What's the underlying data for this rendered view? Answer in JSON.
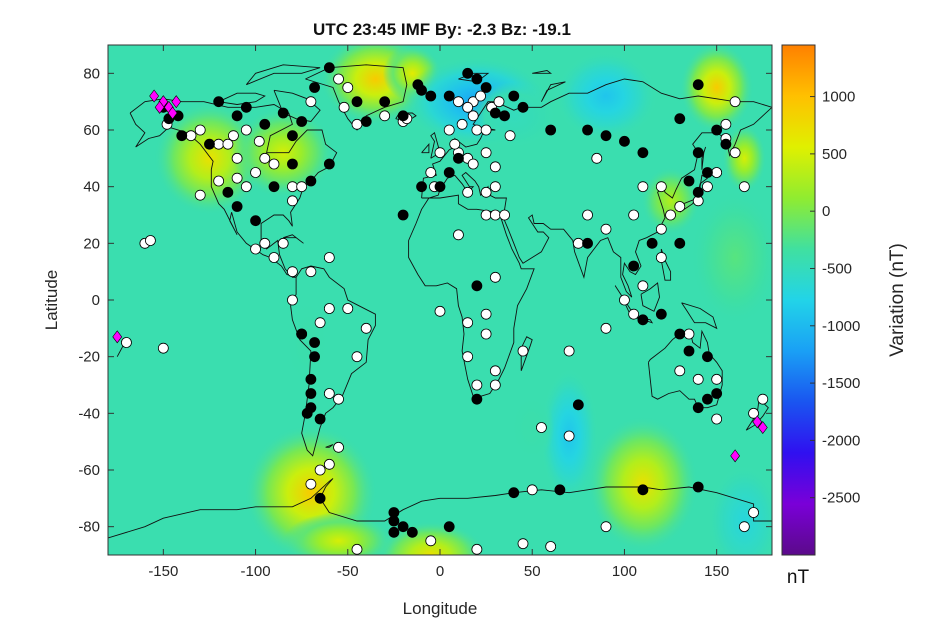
{
  "title": "UTC 23:45 IMF By: -2.3 Bz: -19.1",
  "xlabel": "Longitude",
  "ylabel": "Latitude",
  "colorbar": {
    "label": "Variation (nT)",
    "unit": "nT",
    "ticks": [
      1000,
      500,
      0,
      -500,
      -1000,
      -1500,
      -2000,
      -2500
    ],
    "range": [
      -3000,
      1450
    ],
    "colormap": [
      "#5b0a8a",
      "#7a00d8",
      "#3010f0",
      "#1a55f0",
      "#1aa0f5",
      "#22d4e8",
      "#40e0a0",
      "#90ec30",
      "#e0f000",
      "#ffc000",
      "#ff8000"
    ]
  },
  "map": {
    "xlim": [
      -180,
      180
    ],
    "ylim": [
      -90,
      90
    ],
    "xticks": [
      -150,
      -100,
      -50,
      0,
      50,
      100,
      150
    ],
    "yticks": [
      80,
      60,
      40,
      20,
      0,
      -20,
      -40,
      -60,
      -80
    ],
    "background_value": -420,
    "anomalies": [
      {
        "lon": -125,
        "lat": 50,
        "sx": 15,
        "sy": 10,
        "v": 700
      },
      {
        "lon": -85,
        "lat": 52,
        "sx": 14,
        "sy": 8,
        "v": 500
      },
      {
        "lon": -35,
        "lat": 78,
        "sx": 15,
        "sy": 8,
        "v": 900
      },
      {
        "lon": -15,
        "lat": 80,
        "sx": 8,
        "sy": 5,
        "v": 600
      },
      {
        "lon": 20,
        "lat": 70,
        "sx": 20,
        "sy": 8,
        "v": -1200
      },
      {
        "lon": 90,
        "lat": 72,
        "sx": 14,
        "sy": 8,
        "v": -900
      },
      {
        "lon": 40,
        "lat": 65,
        "sx": 12,
        "sy": 6,
        "v": -500
      },
      {
        "lon": 150,
        "lat": 75,
        "sx": 10,
        "sy": 8,
        "v": 900
      },
      {
        "lon": 165,
        "lat": 50,
        "sx": 6,
        "sy": 6,
        "v": 500
      },
      {
        "lon": 125,
        "lat": 35,
        "sx": 8,
        "sy": 6,
        "v": 300
      },
      {
        "lon": -70,
        "lat": -68,
        "sx": 18,
        "sy": 12,
        "v": 900
      },
      {
        "lon": -5,
        "lat": -90,
        "sx": 15,
        "sy": 6,
        "v": 700
      },
      {
        "lon": 110,
        "lat": -65,
        "sx": 15,
        "sy": 12,
        "v": 700
      },
      {
        "lon": 165,
        "lat": -78,
        "sx": 10,
        "sy": 10,
        "v": -700
      },
      {
        "lon": 70,
        "lat": -48,
        "sx": 8,
        "sy": 12,
        "v": -900
      },
      {
        "lon": 50,
        "lat": -45,
        "sx": 6,
        "sy": 6,
        "v": -400
      },
      {
        "lon": -55,
        "lat": -85,
        "sx": 15,
        "sy": 5,
        "v": 500
      },
      {
        "lon": -72,
        "lat": -15,
        "sx": 6,
        "sy": 8,
        "v": -400
      },
      {
        "lon": 160,
        "lat": 15,
        "sx": 12,
        "sy": 12,
        "v": -200
      }
    ],
    "stations_filled": [
      [
        -150,
        68
      ],
      [
        -142,
        65
      ],
      [
        -147,
        64
      ],
      [
        -140,
        58
      ],
      [
        -125,
        55
      ],
      [
        -110,
        65
      ],
      [
        -105,
        68
      ],
      [
        -95,
        62
      ],
      [
        -85,
        66
      ],
      [
        -80,
        58
      ],
      [
        -75,
        63
      ],
      [
        -68,
        75
      ],
      [
        -60,
        82
      ],
      [
        -45,
        70
      ],
      [
        -40,
        63
      ],
      [
        -30,
        70
      ],
      [
        -20,
        65
      ],
      [
        -12,
        76
      ],
      [
        -10,
        74
      ],
      [
        -5,
        72
      ],
      [
        5,
        72
      ],
      [
        15,
        80
      ],
      [
        20,
        78
      ],
      [
        25,
        75
      ],
      [
        30,
        66
      ],
      [
        35,
        65
      ],
      [
        40,
        72
      ],
      [
        45,
        68
      ],
      [
        60,
        60
      ],
      [
        80,
        60
      ],
      [
        90,
        58
      ],
      [
        100,
        56
      ],
      [
        110,
        52
      ],
      [
        130,
        64
      ],
      [
        140,
        76
      ],
      [
        150,
        60
      ],
      [
        155,
        55
      ],
      [
        140,
        52
      ],
      [
        135,
        42
      ],
      [
        140,
        38
      ],
      [
        145,
        45
      ],
      [
        130,
        20
      ],
      [
        115,
        20
      ],
      [
        120,
        -5
      ],
      [
        130,
        -12
      ],
      [
        135,
        -18
      ],
      [
        145,
        -20
      ],
      [
        145,
        -35
      ],
      [
        150,
        -33
      ],
      [
        140,
        -38
      ],
      [
        -20,
        30
      ],
      [
        -10,
        40
      ],
      [
        0,
        40
      ],
      [
        5,
        45
      ],
      [
        10,
        50
      ],
      [
        -70,
        42
      ],
      [
        -80,
        48
      ],
      [
        -60,
        48
      ],
      [
        -115,
        38
      ],
      [
        -110,
        33
      ],
      [
        -100,
        28
      ],
      [
        -90,
        40
      ],
      [
        -120,
        70
      ],
      [
        -68,
        -20
      ],
      [
        -70,
        -38
      ],
      [
        -72,
        -40
      ],
      [
        -65,
        -42
      ],
      [
        -70,
        -28
      ],
      [
        -68,
        -15
      ],
      [
        -75,
        -12
      ],
      [
        -70,
        -33
      ],
      [
        20,
        -35
      ],
      [
        20,
        5
      ],
      [
        80,
        20
      ],
      [
        105,
        12
      ],
      [
        110,
        -7
      ],
      [
        40,
        -68
      ],
      [
        110,
        -67
      ],
      [
        140,
        -66
      ],
      [
        -25,
        -78
      ],
      [
        -20,
        -80
      ],
      [
        -25,
        -82
      ],
      [
        -15,
        -82
      ],
      [
        5,
        -80
      ],
      [
        75,
        -37
      ],
      [
        65,
        -67
      ],
      [
        -65,
        -70
      ],
      [
        -25,
        -75
      ]
    ],
    "stations_open": [
      [
        -148,
        62
      ],
      [
        -135,
        58
      ],
      [
        -130,
        60
      ],
      [
        -120,
        55
      ],
      [
        -115,
        55
      ],
      [
        -112,
        58
      ],
      [
        -105,
        60
      ],
      [
        -98,
        56
      ],
      [
        -110,
        50
      ],
      [
        -95,
        50
      ],
      [
        -100,
        45
      ],
      [
        -110,
        43
      ],
      [
        -130,
        37
      ],
      [
        -120,
        42
      ],
      [
        -105,
        40
      ],
      [
        -90,
        48
      ],
      [
        -80,
        40
      ],
      [
        -80,
        35
      ],
      [
        -75,
        40
      ],
      [
        -70,
        70
      ],
      [
        -55,
        78
      ],
      [
        -50,
        75
      ],
      [
        -52,
        68
      ],
      [
        -45,
        62
      ],
      [
        -20,
        63
      ],
      [
        -18,
        64
      ],
      [
        -30,
        65
      ],
      [
        0,
        52
      ],
      [
        10,
        52
      ],
      [
        15,
        50
      ],
      [
        18,
        48
      ],
      [
        25,
        52
      ],
      [
        30,
        47
      ],
      [
        12,
        62
      ],
      [
        18,
        65
      ],
      [
        20,
        60
      ],
      [
        25,
        60
      ],
      [
        28,
        68
      ],
      [
        32,
        70
      ],
      [
        38,
        58
      ],
      [
        10,
        70
      ],
      [
        18,
        70
      ],
      [
        22,
        72
      ],
      [
        15,
        68
      ],
      [
        5,
        60
      ],
      [
        8,
        55
      ],
      [
        -5,
        45
      ],
      [
        -3,
        40
      ],
      [
        15,
        38
      ],
      [
        25,
        38
      ],
      [
        30,
        40
      ],
      [
        25,
        30
      ],
      [
        30,
        30
      ],
      [
        35,
        30
      ],
      [
        10,
        23
      ],
      [
        30,
        8
      ],
      [
        25,
        -12
      ],
      [
        15,
        -8
      ],
      [
        15,
        -20
      ],
      [
        30,
        -25
      ],
      [
        20,
        -30
      ],
      [
        30,
        -30
      ],
      [
        45,
        -18
      ],
      [
        55,
        -45
      ],
      [
        70,
        -48
      ],
      [
        50,
        -67
      ],
      [
        60,
        -87
      ],
      [
        45,
        -86
      ],
      [
        90,
        -80
      ],
      [
        20,
        -88
      ],
      [
        -5,
        -85
      ],
      [
        -45,
        -88
      ],
      [
        -70,
        -65
      ],
      [
        -65,
        -60
      ],
      [
        -60,
        -58
      ],
      [
        -55,
        -52
      ],
      [
        -75,
        -12
      ],
      [
        -65,
        -8
      ],
      [
        -60,
        -3
      ],
      [
        -50,
        -3
      ],
      [
        -40,
        -10
      ],
      [
        -45,
        -20
      ],
      [
        -60,
        -33
      ],
      [
        -55,
        -35
      ],
      [
        -80,
        0
      ],
      [
        -85,
        20
      ],
      [
        -95,
        20
      ],
      [
        -90,
        15
      ],
      [
        -100,
        18
      ],
      [
        -160,
        20
      ],
      [
        -157,
        21
      ],
      [
        -150,
        -17
      ],
      [
        -170,
        -15
      ],
      [
        0,
        -4
      ],
      [
        25,
        -5
      ],
      [
        70,
        -18
      ],
      [
        90,
        -10
      ],
      [
        100,
        0
      ],
      [
        105,
        -5
      ],
      [
        110,
        5
      ],
      [
        120,
        15
      ],
      [
        120,
        25
      ],
      [
        125,
        30
      ],
      [
        130,
        33
      ],
      [
        140,
        35
      ],
      [
        145,
        40
      ],
      [
        150,
        45
      ],
      [
        155,
        62
      ],
      [
        160,
        70
      ],
      [
        155,
        57
      ],
      [
        160,
        52
      ],
      [
        165,
        40
      ],
      [
        170,
        -40
      ],
      [
        175,
        -35
      ],
      [
        150,
        -42
      ],
      [
        140,
        -28
      ],
      [
        135,
        -12
      ],
      [
        130,
        -25
      ],
      [
        150,
        -28
      ],
      [
        170,
        -75
      ],
      [
        165,
        -80
      ],
      [
        75,
        20
      ],
      [
        80,
        30
      ],
      [
        90,
        25
      ],
      [
        85,
        50
      ],
      [
        110,
        40
      ],
      [
        120,
        40
      ],
      [
        105,
        30
      ],
      [
        -80,
        10
      ],
      [
        -70,
        10
      ],
      [
        -60,
        15
      ]
    ],
    "stations_diamond": [
      [
        -155,
        72
      ],
      [
        -150,
        70
      ],
      [
        -147,
        68
      ],
      [
        -145,
        66
      ],
      [
        -143,
        70
      ],
      [
        -152,
        68
      ],
      [
        -175,
        -13
      ],
      [
        160,
        -55
      ],
      [
        175,
        -45
      ],
      [
        172,
        -43
      ]
    ]
  }
}
